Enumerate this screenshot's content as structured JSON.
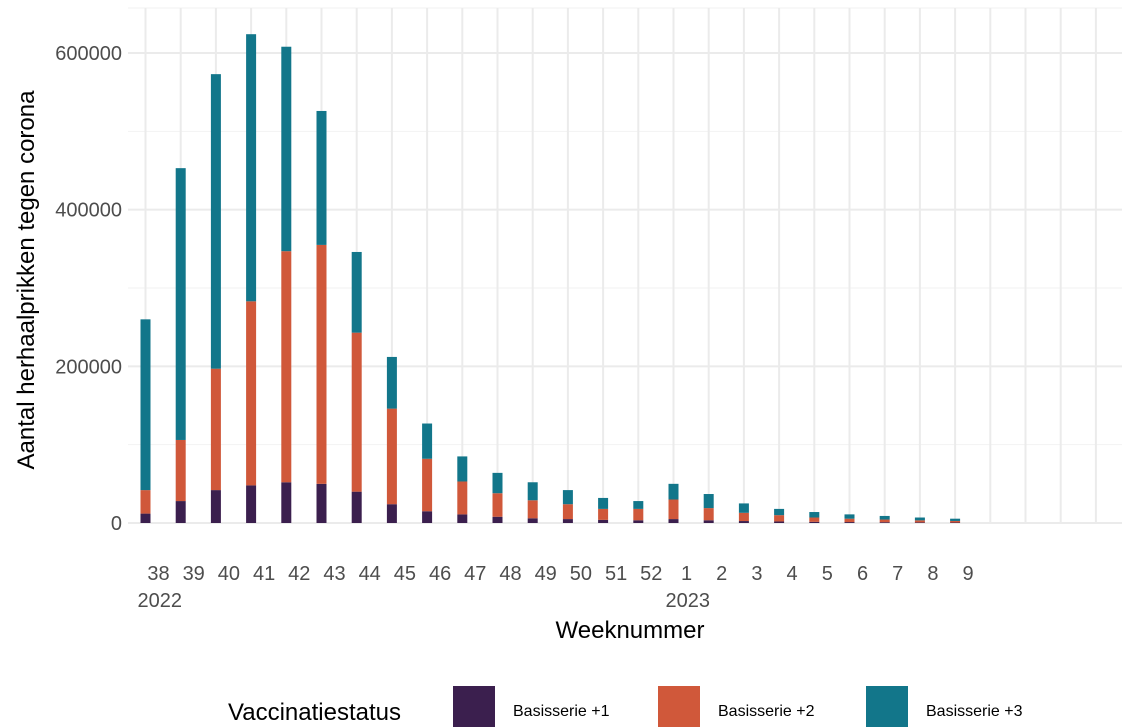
{
  "chart_data": {
    "type": "bar",
    "stacked": true,
    "title": "",
    "xlabel": "Weeknummer",
    "ylabel": "Aantal herhaalprikken tegen corona",
    "ylim": [
      0,
      640000
    ],
    "yticks": [
      0,
      200000,
      400000,
      600000
    ],
    "ytick_labels": [
      "0",
      "200000",
      "400000",
      "600000"
    ],
    "grid": true,
    "categories": [
      "38",
      "39",
      "40",
      "41",
      "42",
      "43",
      "44",
      "45",
      "46",
      "47",
      "48",
      "49",
      "50",
      "51",
      "52",
      "1",
      "2",
      "3",
      "4",
      "5",
      "6",
      "7",
      "8",
      "9"
    ],
    "year_labels": [
      {
        "category": "38",
        "text": "2022"
      },
      {
        "category": "1",
        "text": "2023"
      }
    ],
    "legend": {
      "title": "Vaccinatiestatus",
      "position": "bottom"
    },
    "series": [
      {
        "name": "Basisserie +1",
        "color": "#3b1f4e",
        "values": [
          12000,
          28000,
          42000,
          48000,
          52000,
          50000,
          40000,
          24000,
          15000,
          11000,
          8000,
          6000,
          5000,
          4000,
          3500,
          5000,
          3500,
          2500,
          2000,
          1500,
          1200,
          1000,
          800,
          600
        ]
      },
      {
        "name": "Basisserie +2",
        "color": "#d0583a",
        "values": [
          30000,
          78000,
          155000,
          235000,
          295000,
          305000,
          203000,
          122000,
          67000,
          42000,
          30000,
          23000,
          19000,
          14000,
          14500,
          25000,
          15500,
          10500,
          8000,
          5500,
          4300,
          3400,
          2600,
          2000
        ]
      },
      {
        "name": "Basisserie +3",
        "color": "#12768a",
        "values": [
          218000,
          347000,
          376000,
          341000,
          261000,
          171000,
          103000,
          66000,
          45000,
          32000,
          26000,
          23000,
          18000,
          14000,
          10000,
          20000,
          18000,
          12000,
          8000,
          7000,
          5500,
          4600,
          3600,
          2900
        ]
      }
    ]
  }
}
